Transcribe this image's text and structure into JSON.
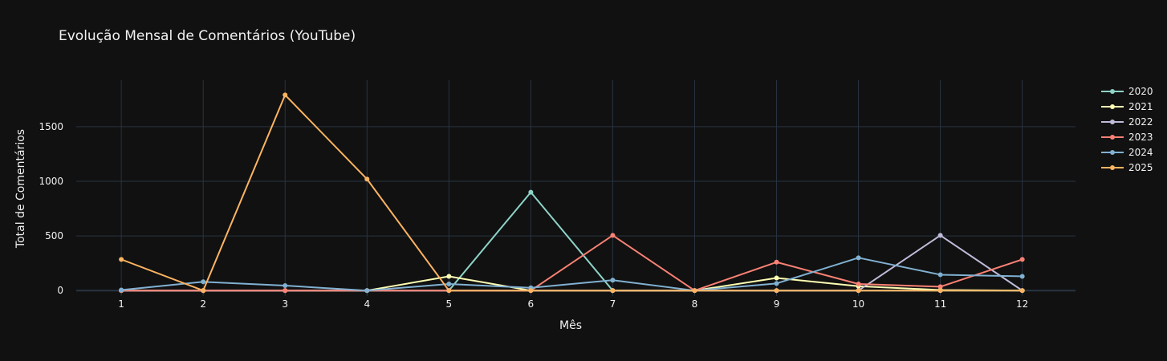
{
  "chart_data": {
    "type": "line",
    "title": "Evolução Mensal de Comentários (YouTube)",
    "xlabel": "Mês",
    "ylabel": "Total de Comentários",
    "x": [
      1,
      2,
      3,
      4,
      5,
      6,
      7,
      8,
      9,
      10,
      11,
      12
    ],
    "x_tick_labels": [
      "1",
      "2",
      "3",
      "4",
      "5",
      "6",
      "7",
      "8",
      "9",
      "10",
      "11",
      "12"
    ],
    "y_ticks": [
      0,
      500,
      1000,
      1500
    ],
    "y_tick_labels": [
      "0",
      "500",
      "1000",
      "1500"
    ],
    "xlim": [
      0.45,
      12.65
    ],
    "ylim": [
      -50,
      1925
    ],
    "grid": true,
    "legend_position": "top-right",
    "series": [
      {
        "name": "2020",
        "color": "#8dd3c7",
        "values": [
          0,
          0,
          0,
          0,
          0,
          900,
          0,
          0,
          0,
          0,
          0,
          0
        ]
      },
      {
        "name": "2021",
        "color": "#feffb3",
        "values": [
          0,
          0,
          0,
          0,
          130,
          0,
          0,
          0,
          115,
          40,
          5,
          0
        ]
      },
      {
        "name": "2022",
        "color": "#bfbbd9",
        "values": [
          0,
          0,
          0,
          0,
          0,
          0,
          0,
          0,
          0,
          0,
          505,
          0
        ]
      },
      {
        "name": "2023",
        "color": "#fa8174",
        "values": [
          0,
          0,
          0,
          0,
          0,
          0,
          505,
          0,
          260,
          60,
          35,
          285
        ]
      },
      {
        "name": "2024",
        "color": "#81b1d2",
        "values": [
          5,
          80,
          45,
          0,
          60,
          25,
          95,
          0,
          65,
          300,
          145,
          130
        ]
      },
      {
        "name": "2025",
        "color": "#fdb462",
        "values": [
          285,
          0,
          1790,
          1020,
          0,
          0,
          0,
          0,
          0,
          0,
          0,
          0
        ]
      }
    ]
  }
}
